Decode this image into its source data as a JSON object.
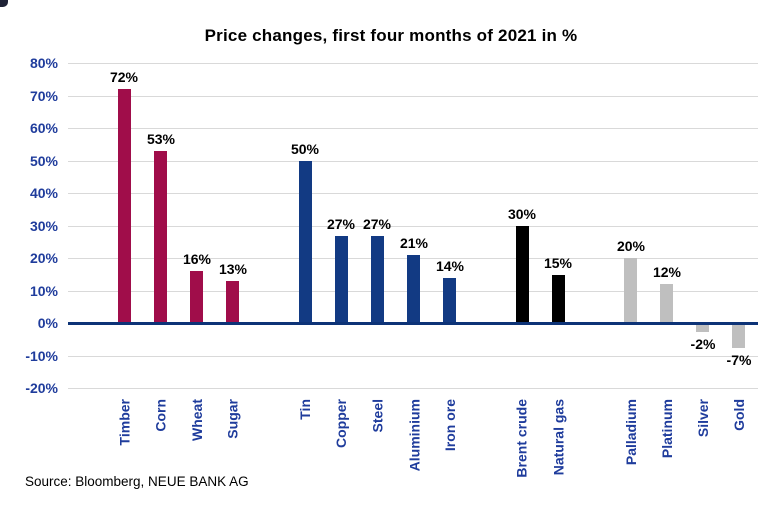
{
  "source": "Source: Bloomberg, NEUE BANK AG",
  "chart_data": {
    "type": "bar",
    "title": "Price changes, first four months of 2021 in %",
    "unit": "%",
    "ylim": [
      -20,
      80
    ],
    "y_ticks": [
      80,
      70,
      60,
      50,
      40,
      30,
      20,
      10,
      0,
      -10,
      -20
    ],
    "y_tick_labels": [
      "80%",
      "70%",
      "60%",
      "50%",
      "40%",
      "30%",
      "20%",
      "10%",
      "0%",
      "-10%",
      "-20%"
    ],
    "grid": true,
    "legend": "none",
    "x_label_rotation": -90,
    "series": [
      {
        "color": "#A00D4A",
        "bars": [
          {
            "label": "Timber",
            "value": 72,
            "value_label": "72%"
          },
          {
            "label": "Corn",
            "value": 53,
            "value_label": "53%"
          },
          {
            "label": "Wheat",
            "value": 16,
            "value_label": "16%"
          },
          {
            "label": "Sugar",
            "value": 13,
            "value_label": "13%"
          }
        ]
      },
      {
        "color": "#123A83",
        "bars": [
          {
            "label": "Tin",
            "value": 50,
            "value_label": "50%"
          },
          {
            "label": "Copper",
            "value": 27,
            "value_label": "27%"
          },
          {
            "label": "Steel",
            "value": 27,
            "value_label": "27%"
          },
          {
            "label": "Aluminium",
            "value": 21,
            "value_label": "21%"
          },
          {
            "label": "Iron ore",
            "value": 14,
            "value_label": "14%"
          }
        ]
      },
      {
        "color": "#000000",
        "bars": [
          {
            "label": "Brent crude",
            "value": 30,
            "value_label": "30%"
          },
          {
            "label": "Natural gas",
            "value": 15,
            "value_label": "15%"
          }
        ]
      },
      {
        "color": "#BFBFBF",
        "bars": [
          {
            "label": "Palladium",
            "value": 20,
            "value_label": "20%"
          },
          {
            "label": "Platinum",
            "value": 12,
            "value_label": "12%"
          },
          {
            "label": "Silver",
            "value": -2,
            "value_label": "-2%"
          },
          {
            "label": "Gold",
            "value": -7,
            "value_label": "-7%"
          }
        ]
      }
    ],
    "colors": {
      "axis_line": "#0D3377",
      "gridline": "#D9D9D9",
      "axis_text": "#1F3C9C",
      "value_label_text": "#000000"
    }
  }
}
